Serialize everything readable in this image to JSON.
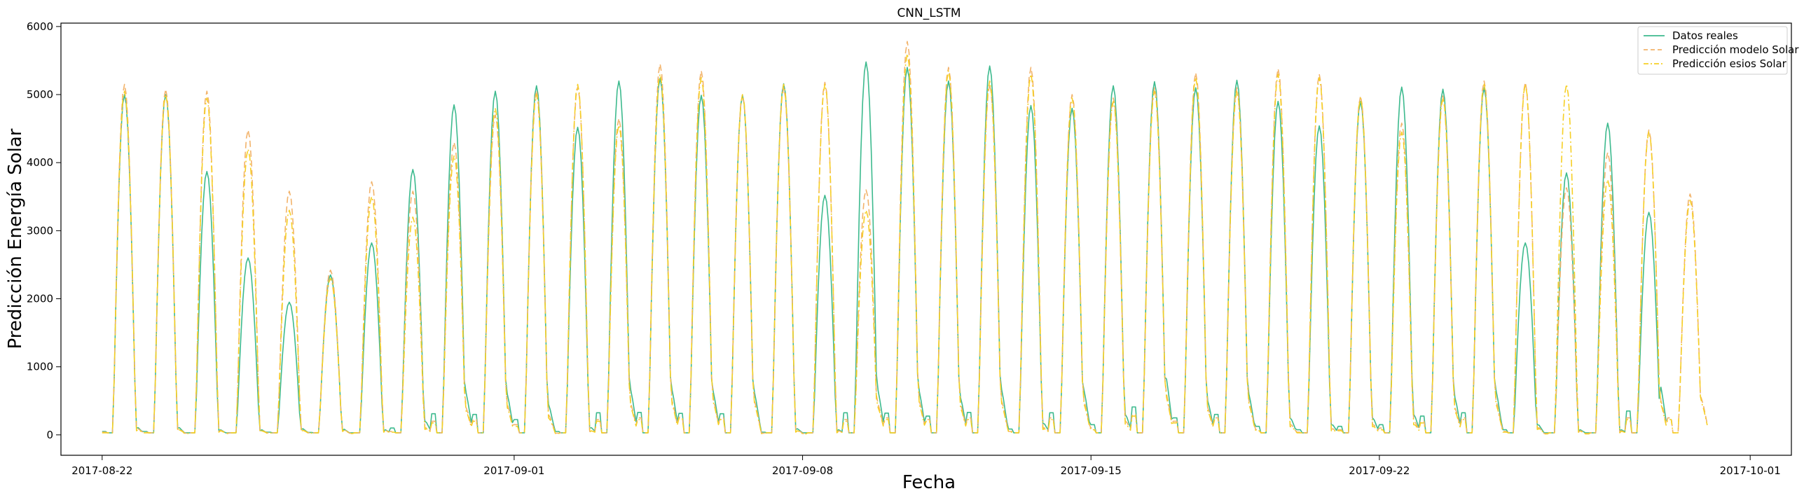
{
  "chart_data": {
    "type": "line",
    "title": "CNN_LSTM",
    "xlabel": "Fecha",
    "ylabel": "Predicción Energía Solar",
    "x_start": "2017-08-22",
    "x_range": [
      "2017-08-21",
      "2017-10-02"
    ],
    "ylim": [
      -300,
      6050
    ],
    "x_ticks": [
      "2017-08-22",
      "2017-09-01",
      "2017-09-08",
      "2017-09-15",
      "2017-09-22",
      "2017-10-01"
    ],
    "y_ticks": [
      0,
      1000,
      2000,
      3000,
      4000,
      5000,
      6000
    ],
    "grid": false,
    "legend_position": "top-right",
    "series": [
      {
        "name": "Datos reales",
        "color": "#3dba8e",
        "style": "solid",
        "daily_peaks": [
          5000,
          5000,
          3870,
          2600,
          1950,
          2350,
          2820,
          3900,
          4850,
          5050,
          5130,
          4520,
          5200,
          5240,
          4990,
          4990,
          5160,
          3520,
          5480,
          5400,
          5200,
          5420,
          4840,
          4800,
          5130,
          5190,
          5100,
          5210,
          4900,
          4540,
          4900,
          5110,
          5080,
          5100,
          2820,
          3850,
          4580,
          3270
        ],
        "night_values": [
          100,
          100,
          60,
          60,
          80,
          70,
          60,
          200,
          620,
          600,
          450,
          100,
          650,
          660,
          630,
          620,
          80,
          60,
          650,
          640,
          550,
          660,
          170,
          650,
          300,
          820,
          500,
          600,
          250,
          150,
          250,
          300,
          550,
          650,
          150,
          60,
          60,
          700
        ]
      },
      {
        "name": "Predicción modelo Solar",
        "color": "#f2b36b",
        "style": "dashed",
        "daily_peaks": [
          5150,
          5080,
          5050,
          4480,
          3580,
          2420,
          3720,
          3580,
          4300,
          4700,
          5060,
          5110,
          4650,
          5450,
          5350,
          5000,
          5100,
          5180,
          3600,
          5780,
          5400,
          5150,
          5400,
          5000,
          4950,
          5100,
          5320,
          5100,
          5380,
          5300,
          4980,
          4580,
          4980,
          5200,
          5180,
          3630,
          4150,
          4480,
          3540
        ],
        "night_values": [
          80,
          80,
          50,
          50,
          60,
          60,
          50,
          100,
          400,
          450,
          300,
          50,
          450,
          500,
          520,
          500,
          50,
          40,
          450,
          500,
          450,
          500,
          100,
          500,
          200,
          600,
          400,
          500,
          150,
          80,
          150,
          200,
          400,
          500,
          100,
          40,
          40,
          500
        ]
      },
      {
        "name": "Predicción esios Solar",
        "color": "#f6cf25",
        "style": "dashdot",
        "daily_peaks": [
          5050,
          5000,
          4950,
          4200,
          3300,
          2300,
          3500,
          3200,
          4100,
          4800,
          5000,
          5150,
          4550,
          5300,
          5250,
          5000,
          5150,
          5150,
          3300,
          5600,
          5350,
          5200,
          5300,
          4950,
          4900,
          5050,
          5250,
          5050,
          5300,
          5250,
          4950,
          4450,
          4950,
          5150,
          5150,
          5150,
          3750,
          4450,
          3450
        ],
        "night_values": [
          60,
          60,
          40,
          40,
          50,
          50,
          40,
          80,
          350,
          400,
          250,
          40,
          400,
          450,
          480,
          450,
          40,
          30,
          400,
          450,
          400,
          450,
          80,
          450,
          150,
          550,
          350,
          450,
          120,
          60,
          120,
          150,
          350,
          450,
          80,
          30,
          30,
          450
        ]
      }
    ]
  }
}
